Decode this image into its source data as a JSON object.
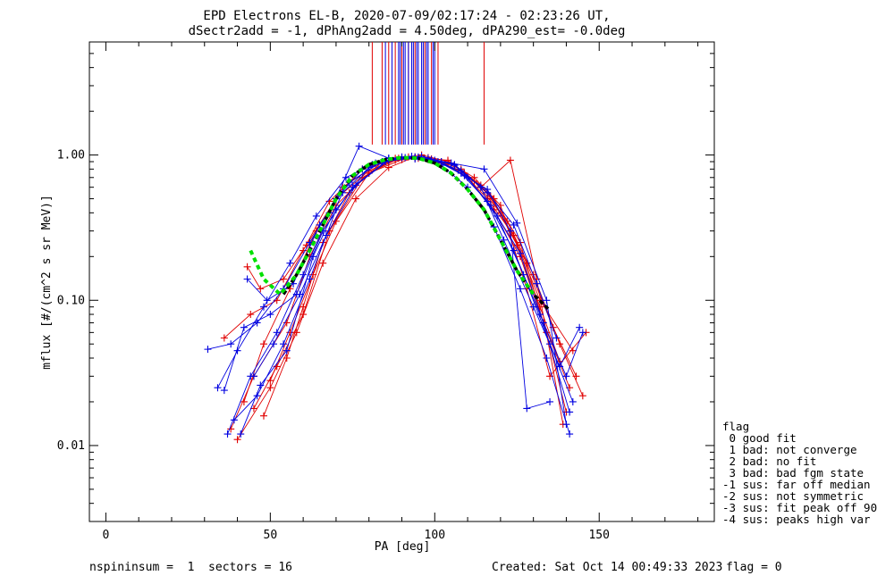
{
  "title_line1": "EPD Electrons EL-B, 2020-07-09/02:17:24 - 02:23:26 UT,",
  "title_line2": "dSectr2add = -1, dPhAng2add = 4.50deg, dPA290_est=  -0.0deg",
  "footer": {
    "left": "nspininsum =  1  sectors = 16",
    "created": "Created: Sat Oct 14 00:49:33 2023",
    "flag": "flag = 0"
  },
  "legend": {
    "title": "flag",
    "items": [
      " 0 good fit",
      " 1 bad: not converge",
      " 2 bad: no fit",
      " 3 bad: bad fgm state",
      "-1 sus: far off median",
      "-2 sus: not symmetric",
      "-3 sus: fit peak off 90",
      "-4 sus: peaks high var"
    ]
  },
  "colors": {
    "series_red": "#e00000",
    "series_blue": "#0000e0",
    "fit_green": "#00e000",
    "fit_black": "#000000"
  },
  "chart_data": {
    "type": "line",
    "xlabel": "PA [deg]",
    "ylabel": "mflux [#/(cm^2 s sr MeV)]",
    "xlim": [
      -5,
      185
    ],
    "ylim": [
      0.003,
      6.0
    ],
    "yscale": "log",
    "xticks": [
      0,
      50,
      100,
      150
    ],
    "xtick_labels": [
      "0",
      "50",
      "100",
      "150"
    ],
    "yticks": [
      0.01,
      0.1,
      1.0
    ],
    "ytick_labels": [
      "0.01",
      "0.10",
      "1.00"
    ],
    "series": [
      {
        "color": "red",
        "x": [
          38,
          45,
          55,
          62,
          70,
          80,
          88,
          95,
          102,
          110,
          118,
          126,
          134,
          140
        ],
        "y": [
          0.013,
          0.03,
          0.07,
          0.2,
          0.45,
          0.75,
          0.92,
          0.95,
          0.88,
          0.7,
          0.42,
          0.2,
          0.06,
          0.017
        ]
      },
      {
        "color": "red",
        "x": [
          42,
          48,
          56,
          64,
          72,
          82,
          90,
          98,
          106,
          114,
          122,
          130,
          138,
          145
        ],
        "y": [
          0.02,
          0.05,
          0.12,
          0.3,
          0.6,
          0.85,
          0.95,
          0.93,
          0.85,
          0.62,
          0.35,
          0.15,
          0.05,
          0.022
        ]
      },
      {
        "color": "red",
        "x": [
          36,
          44,
          52,
          60,
          68,
          78,
          86,
          94,
          102,
          112,
          120,
          128,
          136,
          143
        ],
        "y": [
          0.055,
          0.08,
          0.1,
          0.22,
          0.48,
          0.8,
          0.9,
          0.96,
          0.9,
          0.66,
          0.4,
          0.18,
          0.065,
          0.03
        ]
      },
      {
        "color": "red",
        "x": [
          48,
          55,
          60,
          66,
          74,
          84,
          92,
          100,
          108,
          116,
          124,
          132,
          142
        ],
        "y": [
          0.016,
          0.04,
          0.09,
          0.25,
          0.55,
          0.9,
          0.97,
          0.9,
          0.78,
          0.5,
          0.28,
          0.1,
          0.045
        ]
      },
      {
        "color": "red",
        "x": [
          40,
          50,
          58,
          66,
          76,
          86,
          94,
          104,
          114,
          123,
          131,
          139
        ],
        "y": [
          0.011,
          0.025,
          0.06,
          0.18,
          0.5,
          0.82,
          0.97,
          0.92,
          0.6,
          0.92,
          0.14,
          0.014
        ]
      },
      {
        "color": "red",
        "x": [
          45,
          52,
          60,
          68,
          78,
          88,
          96,
          104,
          112,
          120,
          128,
          135,
          146
        ],
        "y": [
          0.018,
          0.035,
          0.08,
          0.3,
          0.7,
          0.95,
          1.0,
          0.9,
          0.7,
          0.45,
          0.12,
          0.03,
          0.06
        ]
      },
      {
        "color": "red",
        "x": [
          50,
          56,
          63,
          70,
          80,
          90,
          98,
          108,
          118,
          126,
          133,
          141
        ],
        "y": [
          0.028,
          0.06,
          0.15,
          0.35,
          0.75,
          0.93,
          0.96,
          0.8,
          0.5,
          0.25,
          0.07,
          0.025
        ]
      },
      {
        "color": "red",
        "x": [
          43,
          47,
          54,
          61,
          70,
          80,
          89,
          99,
          109,
          117,
          125,
          132,
          138
        ],
        "y": [
          0.17,
          0.12,
          0.14,
          0.24,
          0.5,
          0.78,
          0.95,
          0.94,
          0.75,
          0.52,
          0.24,
          0.09,
          0.038
        ]
      },
      {
        "color": "blue",
        "x": [
          31,
          38,
          46,
          54,
          62,
          70,
          78,
          86,
          94,
          102,
          110,
          118,
          126,
          134,
          141
        ],
        "y": [
          0.046,
          0.05,
          0.07,
          0.12,
          0.25,
          0.5,
          0.8,
          0.95,
          0.97,
          0.85,
          0.6,
          0.32,
          0.12,
          0.04,
          0.012
        ]
      },
      {
        "color": "blue",
        "x": [
          37,
          44,
          52,
          60,
          68,
          77,
          86,
          94,
          102,
          110,
          119,
          127,
          135,
          142
        ],
        "y": [
          0.012,
          0.03,
          0.06,
          0.15,
          0.4,
          1.15,
          0.95,
          0.94,
          0.9,
          0.7,
          0.38,
          0.15,
          0.05,
          0.02
        ]
      },
      {
        "color": "blue",
        "x": [
          34,
          40,
          48,
          56,
          64,
          73,
          82,
          91,
          100,
          108,
          116,
          124,
          132,
          140,
          145
        ],
        "y": [
          0.025,
          0.045,
          0.09,
          0.18,
          0.38,
          0.7,
          0.88,
          0.96,
          0.92,
          0.75,
          0.48,
          0.22,
          0.08,
          0.03,
          0.06
        ]
      },
      {
        "color": "blue",
        "x": [
          43,
          49,
          57,
          65,
          74,
          84,
          93,
          101,
          109,
          116,
          123,
          128,
          135
        ],
        "y": [
          0.14,
          0.1,
          0.13,
          0.33,
          0.65,
          0.9,
          0.98,
          0.9,
          0.72,
          0.58,
          0.3,
          0.018,
          0.02
        ]
      },
      {
        "color": "blue",
        "x": [
          39,
          46,
          54,
          62,
          70,
          80,
          90,
          98,
          106,
          114,
          121,
          130,
          138,
          144
        ],
        "y": [
          0.015,
          0.022,
          0.05,
          0.14,
          0.42,
          0.82,
          0.97,
          0.95,
          0.85,
          0.6,
          0.26,
          0.09,
          0.035,
          0.065
        ]
      },
      {
        "color": "blue",
        "x": [
          36,
          42,
          50,
          58,
          66,
          75,
          85,
          95,
          105,
          115,
          125,
          134,
          140
        ],
        "y": [
          0.024,
          0.065,
          0.08,
          0.11,
          0.3,
          0.6,
          0.9,
          0.97,
          0.88,
          0.8,
          0.34,
          0.1,
          0.014
        ]
      },
      {
        "color": "blue",
        "x": [
          45,
          51,
          59,
          67,
          76,
          86,
          96,
          106,
          116,
          124,
          131,
          137
        ],
        "y": [
          0.03,
          0.05,
          0.11,
          0.28,
          0.62,
          0.92,
          0.98,
          0.86,
          0.55,
          0.33,
          0.13,
          0.055
        ]
      },
      {
        "color": "blue",
        "x": [
          41,
          47,
          55,
          63,
          72,
          81,
          90,
          99,
          108,
          117,
          126,
          133,
          141
        ],
        "y": [
          0.012,
          0.026,
          0.045,
          0.2,
          0.55,
          0.86,
          0.96,
          0.93,
          0.78,
          0.45,
          0.21,
          0.07,
          0.017
        ]
      }
    ],
    "fit_curve_green": {
      "x": [
        44,
        48,
        53,
        58,
        62,
        66,
        70,
        75,
        80,
        85,
        90,
        95,
        100,
        105,
        110,
        115,
        120,
        125,
        130
      ],
      "y": [
        0.22,
        0.14,
        0.11,
        0.15,
        0.22,
        0.33,
        0.5,
        0.72,
        0.86,
        0.93,
        0.96,
        0.95,
        0.88,
        0.75,
        0.58,
        0.42,
        0.26,
        0.16,
        0.11
      ]
    },
    "fit_curve_black": {
      "x": [
        54,
        58,
        62,
        66,
        70,
        75,
        80,
        85,
        90,
        95,
        100,
        105,
        110,
        115,
        120,
        125,
        130,
        135
      ],
      "y": [
        0.11,
        0.15,
        0.22,
        0.33,
        0.5,
        0.72,
        0.86,
        0.93,
        0.96,
        0.95,
        0.88,
        0.75,
        0.58,
        0.42,
        0.26,
        0.16,
        0.11,
        0.085
      ]
    },
    "top_markers": [
      {
        "color": "red",
        "x": [
          81,
          84,
          86,
          88,
          90,
          92,
          94,
          97,
          99,
          101,
          115
        ]
      },
      {
        "color": "blue",
        "x": [
          85,
          87,
          89,
          89.5,
          90.5,
          91,
          92,
          93,
          93.5,
          94.5,
          95,
          96,
          96.5,
          97.5,
          98,
          99.5,
          100
        ]
      }
    ]
  }
}
